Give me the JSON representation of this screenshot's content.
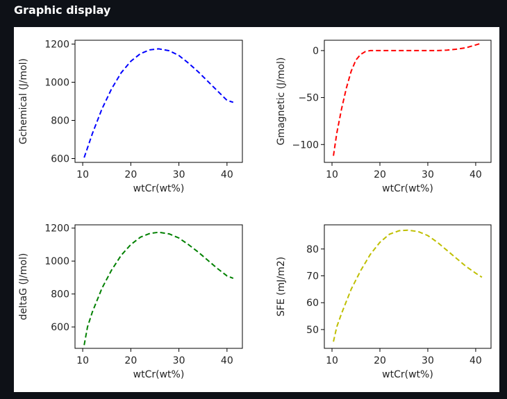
{
  "header": {
    "title": "Graphic display"
  },
  "chart_data": [
    {
      "type": "line",
      "xlabel": "wtCr(wt%)",
      "ylabel": "Gchemical (J/mol)",
      "xlim": [
        8.4,
        43.2
      ],
      "ylim": [
        580,
        1220
      ],
      "xticks": [
        10,
        20,
        30,
        40
      ],
      "yticks": [
        600,
        800,
        1000,
        1200
      ],
      "line_style": "dashed",
      "color": "#0000ff",
      "grid": false,
      "series": [
        {
          "x": [
            10.3,
            12,
            14,
            16,
            18,
            20,
            22,
            24,
            25.8,
            28,
            30,
            32,
            34,
            36,
            38,
            40,
            41.3
          ],
          "y": [
            605,
            730,
            860,
            965,
            1050,
            1110,
            1150,
            1170,
            1175,
            1165,
            1140,
            1100,
            1055,
            1005,
            955,
            905,
            895
          ]
        }
      ]
    },
    {
      "type": "line",
      "xlabel": "wtCr(wt%)",
      "ylabel": "Gmagnetic (J/mol)",
      "xlim": [
        8.4,
        43.2
      ],
      "ylim": [
        -119,
        11
      ],
      "xticks": [
        10,
        20,
        30,
        40
      ],
      "yticks": [
        0,
        -50,
        -100
      ],
      "line_style": "dashed",
      "color": "#ff0000",
      "grid": false,
      "series": [
        {
          "x": [
            10.3,
            11,
            12,
            13,
            14,
            15,
            16,
            17,
            18,
            20,
            22,
            25,
            28,
            30,
            32,
            34,
            36,
            38,
            40,
            41.3
          ],
          "y": [
            -112,
            -88,
            -62,
            -40,
            -22,
            -10,
            -4,
            -1,
            0,
            0,
            0,
            0,
            0,
            0,
            0,
            0.5,
            1.5,
            3,
            6,
            8
          ]
        }
      ]
    },
    {
      "type": "line",
      "xlabel": "wtCr(wt%)",
      "ylabel": "deltaG (J/mol)",
      "xlim": [
        8.4,
        43.2
      ],
      "ylim": [
        470,
        1220
      ],
      "xticks": [
        10,
        20,
        30,
        40
      ],
      "yticks": [
        600,
        800,
        1000,
        1200
      ],
      "line_style": "dashed",
      "color": "#008000",
      "grid": false,
      "series": [
        {
          "x": [
            10.3,
            11,
            12,
            14,
            16,
            18,
            20,
            22,
            24,
            25.8,
            28,
            30,
            32,
            34,
            36,
            38,
            40,
            41.3
          ],
          "y": [
            490,
            600,
            690,
            835,
            945,
            1035,
            1100,
            1145,
            1168,
            1175,
            1165,
            1140,
            1100,
            1055,
            1005,
            955,
            910,
            895
          ]
        }
      ]
    },
    {
      "type": "line",
      "xlabel": "wtCr(wt%)",
      "ylabel": "SFE (mJ/m2)",
      "xlim": [
        8.4,
        43.2
      ],
      "ylim": [
        43,
        89
      ],
      "xticks": [
        10,
        20,
        30,
        40
      ],
      "yticks": [
        50,
        60,
        70,
        80
      ],
      "line_style": "dashed",
      "color": "#bfbf00",
      "grid": false,
      "series": [
        {
          "x": [
            10.3,
            11,
            12,
            14,
            16,
            18,
            20,
            22,
            24,
            25.8,
            28,
            30,
            32,
            34,
            36,
            38,
            40,
            41.3
          ],
          "y": [
            45.5,
            51,
            56,
            65,
            72,
            78,
            82.5,
            85.5,
            86.8,
            87,
            86.5,
            85,
            82.5,
            79.5,
            76.5,
            73.5,
            71,
            69.5
          ]
        }
      ]
    }
  ]
}
